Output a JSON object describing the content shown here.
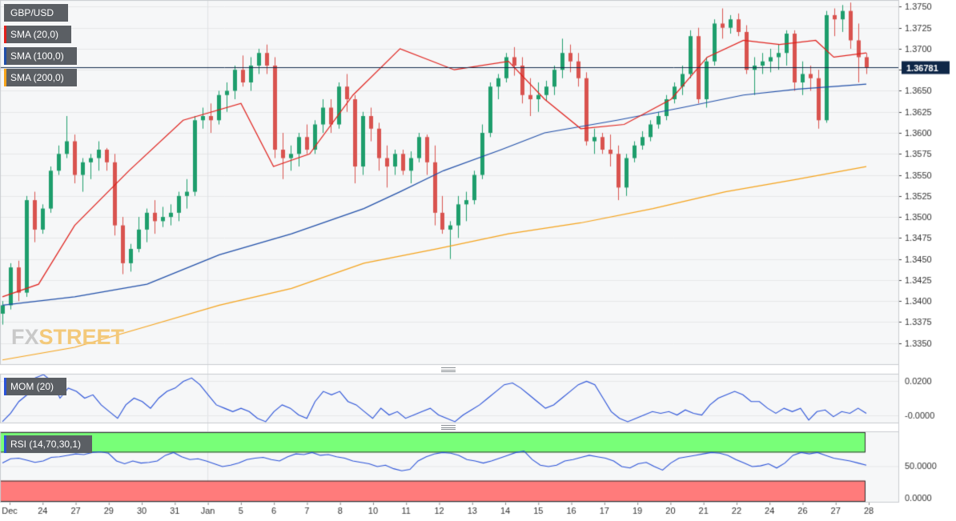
{
  "legend": {
    "symbol": "GBP/USD",
    "sma20": "SMA (20,0)",
    "sma100": "SMA (100,0)",
    "sma200": "SMA (200,0)",
    "mom": "MOM (20)",
    "rsi": "RSI (14,70,30,1)"
  },
  "logo": {
    "part1": "FX",
    "part2": "STREET"
  },
  "colors": {
    "up": "#1e9e6c",
    "down": "#d9534f",
    "sma20": "#e0201b",
    "sma100": "#1f4ea8",
    "sma200": "#f5a31a",
    "osc": "#2a52d8",
    "rsi_high": "#78ff78",
    "rsi_low": "#ff7b7b",
    "badge_bg": "#5b5f64",
    "price_label_bg": "#0f2748"
  },
  "price_label": "1.36781",
  "chart_data": [
    {
      "type": "candlestick",
      "title": "GBP/USD",
      "x_tick_labels": [
        "Dec",
        "24",
        "27",
        "29",
        "30",
        "31",
        "Jan",
        "5",
        "6",
        "7",
        "8",
        "10",
        "11",
        "12",
        "13",
        "14",
        "15",
        "16",
        "17",
        "19",
        "20",
        "21",
        "22",
        "24",
        "26",
        "27",
        "28"
      ],
      "y_tick_labels": [
        "1.3750",
        "1.3725",
        "1.3700",
        "1.3675",
        "1.3650",
        "1.3625",
        "1.3600",
        "1.3575",
        "1.3550",
        "1.3525",
        "1.3500",
        "1.3475",
        "1.3450",
        "1.3425",
        "1.3400",
        "1.3375",
        "1.3350"
      ],
      "ylim": [
        1.3325,
        1.3758
      ],
      "last_price": 1.36781,
      "candles": [
        [
          1.3385,
          1.34,
          1.3372,
          1.3395
        ],
        [
          1.3395,
          1.3445,
          1.339,
          1.344
        ],
        [
          1.344,
          1.3448,
          1.34,
          1.341
        ],
        [
          1.341,
          1.3525,
          1.3405,
          1.352
        ],
        [
          1.352,
          1.353,
          1.347,
          1.3485
        ],
        [
          1.3485,
          1.3515,
          1.348,
          1.351
        ],
        [
          1.351,
          1.356,
          1.3505,
          1.3555
        ],
        [
          1.3555,
          1.3585,
          1.355,
          1.3575
        ],
        [
          1.3575,
          1.362,
          1.357,
          1.359
        ],
        [
          1.359,
          1.3598,
          1.354,
          1.355
        ],
        [
          1.355,
          1.357,
          1.353,
          1.3565
        ],
        [
          1.3565,
          1.3575,
          1.3545,
          1.357
        ],
        [
          1.357,
          1.359,
          1.3555,
          1.358
        ],
        [
          1.358,
          1.3582,
          1.3555,
          1.3565
        ],
        [
          1.3565,
          1.3575,
          1.3478,
          1.349
        ],
        [
          1.349,
          1.35,
          1.3432,
          1.3445
        ],
        [
          1.3445,
          1.3468,
          1.3435,
          1.3462
        ],
        [
          1.3462,
          1.35,
          1.3458,
          1.3485
        ],
        [
          1.3485,
          1.351,
          1.347,
          1.3505
        ],
        [
          1.3505,
          1.352,
          1.348,
          1.3495
        ],
        [
          1.3495,
          1.3512,
          1.3488,
          1.35
        ],
        [
          1.35,
          1.3515,
          1.349,
          1.3505
        ],
        [
          1.3505,
          1.353,
          1.3495,
          1.3525
        ],
        [
          1.3525,
          1.3545,
          1.351,
          1.353
        ],
        [
          1.353,
          1.362,
          1.3525,
          1.3615
        ],
        [
          1.3615,
          1.363,
          1.3605,
          1.362
        ],
        [
          1.362,
          1.3635,
          1.36,
          1.3615
        ],
        [
          1.3615,
          1.365,
          1.361,
          1.3645
        ],
        [
          1.3645,
          1.366,
          1.3625,
          1.365
        ],
        [
          1.365,
          1.368,
          1.364,
          1.3675
        ],
        [
          1.3675,
          1.3692,
          1.3655,
          1.366
        ],
        [
          1.366,
          1.369,
          1.365,
          1.368
        ],
        [
          1.368,
          1.37,
          1.367,
          1.3695
        ],
        [
          1.3695,
          1.3705,
          1.367,
          1.368
        ],
        [
          1.368,
          1.369,
          1.357,
          1.358
        ],
        [
          1.358,
          1.36,
          1.3545,
          1.357
        ],
        [
          1.357,
          1.3585,
          1.3555,
          1.3575
        ],
        [
          1.3575,
          1.36,
          1.356,
          1.3595
        ],
        [
          1.3595,
          1.361,
          1.3575,
          1.358
        ],
        [
          1.358,
          1.3615,
          1.3575,
          1.361
        ],
        [
          1.361,
          1.364,
          1.36,
          1.363
        ],
        [
          1.363,
          1.364,
          1.36,
          1.361
        ],
        [
          1.361,
          1.366,
          1.3605,
          1.3655
        ],
        [
          1.3655,
          1.367,
          1.3625,
          1.364
        ],
        [
          1.364,
          1.3645,
          1.354,
          1.356
        ],
        [
          1.356,
          1.3625,
          1.355,
          1.362
        ],
        [
          1.362,
          1.363,
          1.359,
          1.3605
        ],
        [
          1.3605,
          1.3612,
          1.3555,
          1.357
        ],
        [
          1.357,
          1.3585,
          1.3535,
          1.356
        ],
        [
          1.356,
          1.358,
          1.355,
          1.3575
        ],
        [
          1.3575,
          1.358,
          1.355,
          1.3555
        ],
        [
          1.3555,
          1.3578,
          1.354,
          1.357
        ],
        [
          1.357,
          1.36,
          1.3565,
          1.3595
        ],
        [
          1.3595,
          1.3598,
          1.355,
          1.3565
        ],
        [
          1.3565,
          1.3585,
          1.349,
          1.3505
        ],
        [
          1.3505,
          1.3525,
          1.348,
          1.3485
        ],
        [
          1.3485,
          1.3495,
          1.345,
          1.349
        ],
        [
          1.349,
          1.3525,
          1.3475,
          1.3515
        ],
        [
          1.3515,
          1.353,
          1.3495,
          1.352
        ],
        [
          1.352,
          1.3555,
          1.3515,
          1.355
        ],
        [
          1.355,
          1.361,
          1.3545,
          1.36
        ],
        [
          1.36,
          1.366,
          1.3595,
          1.3655
        ],
        [
          1.3655,
          1.367,
          1.364,
          1.3665
        ],
        [
          1.3665,
          1.3695,
          1.366,
          1.369
        ],
        [
          1.369,
          1.3702,
          1.3668,
          1.368
        ],
        [
          1.368,
          1.369,
          1.3635,
          1.3645
        ],
        [
          1.3645,
          1.3665,
          1.362,
          1.364
        ],
        [
          1.364,
          1.366,
          1.3625,
          1.3645
        ],
        [
          1.3645,
          1.3662,
          1.3638,
          1.3655
        ],
        [
          1.3655,
          1.368,
          1.3645,
          1.3675
        ],
        [
          1.3675,
          1.3712,
          1.3665,
          1.3695
        ],
        [
          1.3695,
          1.3705,
          1.3672,
          1.3685
        ],
        [
          1.3685,
          1.3695,
          1.3655,
          1.3665
        ],
        [
          1.3665,
          1.3672,
          1.3585,
          1.359
        ],
        [
          1.359,
          1.3605,
          1.3575,
          1.3595
        ],
        [
          1.3595,
          1.36,
          1.3575,
          1.358
        ],
        [
          1.358,
          1.3598,
          1.356,
          1.3575
        ],
        [
          1.3575,
          1.3585,
          1.352,
          1.3535
        ],
        [
          1.3535,
          1.3575,
          1.3525,
          1.357
        ],
        [
          1.357,
          1.359,
          1.3565,
          1.3585
        ],
        [
          1.3585,
          1.3602,
          1.358,
          1.3595
        ],
        [
          1.3595,
          1.3615,
          1.359,
          1.361
        ],
        [
          1.361,
          1.3625,
          1.3605,
          1.362
        ],
        [
          1.362,
          1.3645,
          1.3615,
          1.364
        ],
        [
          1.364,
          1.366,
          1.3635,
          1.3655
        ],
        [
          1.3655,
          1.368,
          1.3645,
          1.367
        ],
        [
          1.367,
          1.3722,
          1.3665,
          1.3715
        ],
        [
          1.3715,
          1.3725,
          1.3635,
          1.364
        ],
        [
          1.364,
          1.369,
          1.363,
          1.3685
        ],
        [
          1.3685,
          1.3735,
          1.368,
          1.373
        ],
        [
          1.373,
          1.3748,
          1.3712,
          1.3725
        ],
        [
          1.3725,
          1.374,
          1.3718,
          1.3735
        ],
        [
          1.3735,
          1.3742,
          1.3715,
          1.372
        ],
        [
          1.372,
          1.3728,
          1.367,
          1.3675
        ],
        [
          1.3675,
          1.369,
          1.3645,
          1.368
        ],
        [
          1.368,
          1.3695,
          1.367,
          1.3685
        ],
        [
          1.3685,
          1.37,
          1.3672,
          1.369
        ],
        [
          1.369,
          1.3705,
          1.3675,
          1.3695
        ],
        [
          1.3695,
          1.3722,
          1.368,
          1.3718
        ],
        [
          1.3718,
          1.3722,
          1.365,
          1.366
        ],
        [
          1.366,
          1.3685,
          1.3645,
          1.367
        ],
        [
          1.367,
          1.368,
          1.365,
          1.3665
        ],
        [
          1.3665,
          1.3675,
          1.3605,
          1.3615
        ],
        [
          1.3615,
          1.3745,
          1.3612,
          1.374
        ],
        [
          1.374,
          1.3748,
          1.3715,
          1.3735
        ],
        [
          1.3735,
          1.3752,
          1.372,
          1.3745
        ],
        [
          1.3745,
          1.3755,
          1.37,
          1.371
        ],
        [
          1.371,
          1.373,
          1.366,
          1.369
        ],
        [
          1.369,
          1.3695,
          1.367,
          1.36781
        ]
      ],
      "sma20": [
        [
          0,
          1.3405
        ],
        [
          10,
          1.342
        ],
        [
          20,
          1.349
        ],
        [
          35,
          1.3555
        ],
        [
          50,
          1.3615
        ],
        [
          66,
          1.3635
        ],
        [
          75,
          1.356
        ],
        [
          85,
          1.3575
        ],
        [
          97,
          1.3645
        ],
        [
          110,
          1.37
        ],
        [
          125,
          1.3675
        ],
        [
          140,
          1.3685
        ],
        [
          150,
          1.364
        ],
        [
          160,
          1.3605
        ],
        [
          172,
          1.361
        ],
        [
          185,
          1.364
        ],
        [
          195,
          1.369
        ],
        [
          205,
          1.371
        ],
        [
          215,
          1.3705
        ],
        [
          225,
          1.371
        ],
        [
          230,
          1.369
        ],
        [
          239,
          1.3695
        ]
      ],
      "sma100": [
        [
          0,
          1.3395
        ],
        [
          20,
          1.3405
        ],
        [
          40,
          1.342
        ],
        [
          60,
          1.3455
        ],
        [
          80,
          1.348
        ],
        [
          100,
          1.351
        ],
        [
          110,
          1.353
        ],
        [
          122,
          1.3555
        ],
        [
          138,
          1.358
        ],
        [
          150,
          1.36
        ],
        [
          170,
          1.3615
        ],
        [
          188,
          1.363
        ],
        [
          205,
          1.3645
        ],
        [
          220,
          1.3652
        ],
        [
          239,
          1.3658
        ]
      ],
      "sma200": [
        [
          0,
          1.333
        ],
        [
          20,
          1.3345
        ],
        [
          40,
          1.337
        ],
        [
          60,
          1.3395
        ],
        [
          80,
          1.3415
        ],
        [
          100,
          1.3445
        ],
        [
          120,
          1.3462
        ],
        [
          140,
          1.348
        ],
        [
          160,
          1.3493
        ],
        [
          180,
          1.351
        ],
        [
          200,
          1.353
        ],
        [
          220,
          1.3545
        ],
        [
          239,
          1.356
        ]
      ]
    },
    {
      "type": "line",
      "title": "MOM (20)",
      "y_tick_labels": [
        "0.0200",
        "-0.0000"
      ],
      "ylim": [
        -0.0045,
        0.0245
      ],
      "series": [
        {
          "name": "MOM (20)",
          "values": [
            -0.004,
            0.001,
            0.008,
            0.012,
            0.022,
            0.024,
            0.02,
            0.01,
            0.016,
            0.014,
            0.01,
            0.012,
            0.006,
            0.002,
            -0.002,
            0.006,
            0.01,
            0.008,
            0.004,
            0.01,
            0.014,
            0.016,
            0.02,
            0.022,
            0.018,
            0.012,
            0.006,
            0.004,
            0.002,
            0.004,
            0.002,
            -0.002,
            -0.004,
            0.002,
            0.006,
            0.004,
            0.0,
            -0.002,
            0.008,
            0.014,
            0.012,
            0.014,
            0.008,
            0.006,
            0.002,
            -0.002,
            0.004,
            0.0,
            0.002,
            -0.002,
            0.0,
            0.002,
            0.004,
            0.0,
            -0.002,
            -0.004,
            0.0,
            0.003,
            0.006,
            0.01,
            0.014,
            0.018,
            0.019,
            0.016,
            0.012,
            0.008,
            0.004,
            0.006,
            0.01,
            0.014,
            0.018,
            0.02,
            0.018,
            0.01,
            0.002,
            -0.002,
            -0.004,
            -0.002,
            0.0,
            0.002,
            0.001,
            0.002,
            0.0,
            0.003,
            0.001,
            0.0,
            0.006,
            0.01,
            0.012,
            0.014,
            0.012,
            0.008,
            0.008,
            0.004,
            0.001,
            0.004,
            0.002,
            0.004,
            -0.003,
            0.002,
            0.003,
            -0.001,
            0.002,
            0.001,
            0.004,
            0.001
          ]
        }
      ]
    },
    {
      "type": "line",
      "title": "RSI (14,70,30,1)",
      "y_tick_labels": [
        "50.0000",
        "0.0000"
      ],
      "ylim": [
        0,
        100
      ],
      "series": [
        {
          "name": "RSI (14,70,30,1)",
          "values": [
            55,
            61,
            62,
            59,
            56,
            58,
            63,
            64,
            66,
            68,
            67,
            70,
            71,
            69,
            58,
            54,
            58,
            55,
            56,
            58,
            66,
            70,
            64,
            60,
            61,
            58,
            54,
            50,
            52,
            55,
            60,
            62,
            63,
            60,
            58,
            64,
            68,
            67,
            70,
            66,
            67,
            64,
            62,
            58,
            56,
            54,
            50,
            52,
            47,
            44,
            46,
            58,
            64,
            68,
            70,
            69,
            66,
            60,
            58,
            55,
            58,
            62,
            66,
            70,
            72,
            60,
            52,
            50,
            52,
            58,
            60,
            63,
            66,
            64,
            62,
            58,
            50,
            48,
            54,
            56,
            50,
            45,
            55,
            62,
            64,
            66,
            68,
            70,
            69,
            66,
            60,
            55,
            50,
            51,
            54,
            48,
            55,
            66,
            70,
            68,
            70,
            66,
            62,
            60,
            58,
            55,
            52
          ]
        }
      ]
    }
  ]
}
